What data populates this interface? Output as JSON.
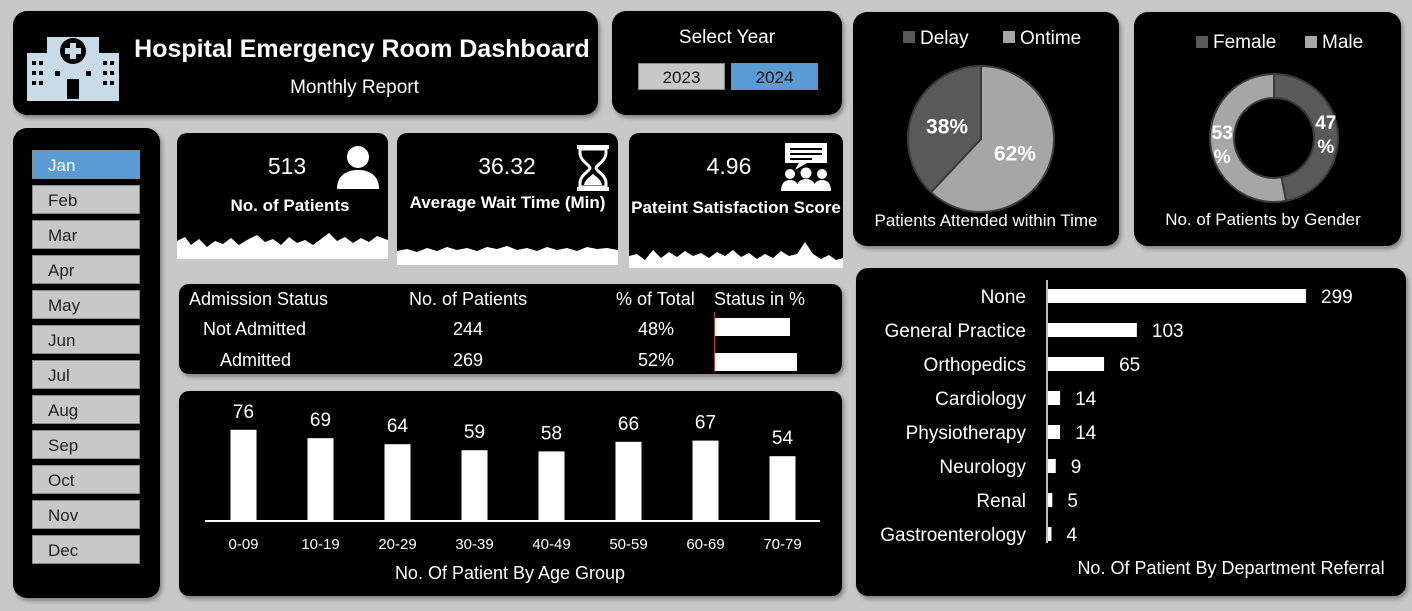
{
  "header": {
    "title": "Hospital Emergency Room Dashboard",
    "subtitle": "Monthly Report",
    "logo_icon": "hospital-icon"
  },
  "year_selector": {
    "title": "Select Year",
    "years": [
      "2023",
      "2024"
    ],
    "selected": "2024"
  },
  "months": [
    "Jan",
    "Feb",
    "Mar",
    "Apr",
    "May",
    "Jun",
    "Jul",
    "Aug",
    "Sep",
    "Oct",
    "Nov",
    "Dec"
  ],
  "selected_month": "Jan",
  "kpis": {
    "patients": {
      "value": "513",
      "label": "No. of Patients",
      "icon": "person-icon"
    },
    "wait_time": {
      "value": "36.32",
      "label": "Average Wait Time (Min)",
      "icon": "hourglass-icon"
    },
    "satisfaction": {
      "value": "4.96",
      "label": "Pateint Satisfaction Score",
      "icon": "group-chat-icon"
    }
  },
  "admission": {
    "headers": {
      "status": "Admission Status",
      "count": "No. of Patients",
      "pct": "% of Total",
      "bar": "Status in %"
    },
    "rows": [
      {
        "status": "Not Admitted",
        "count": "244",
        "pct": "48%",
        "fraction": 0.48
      },
      {
        "status": "Admitted",
        "count": "269",
        "pct": "52%",
        "fraction": 0.52
      }
    ]
  },
  "chart_data": [
    {
      "type": "bar",
      "title": "No. Of Patient By Age Group",
      "categories": [
        "0-09",
        "10-19",
        "20-29",
        "30-39",
        "40-49",
        "50-59",
        "60-69",
        "70-79"
      ],
      "values": [
        76,
        69,
        64,
        59,
        58,
        66,
        67,
        54
      ],
      "ylim": [
        0,
        100
      ],
      "grid": false,
      "color": "#ffffff"
    },
    {
      "type": "pie",
      "title": "Patients Attended within Time",
      "categories": [
        "Delay",
        "Ontime"
      ],
      "values": [
        38,
        62
      ],
      "labels": [
        "38%",
        "62%"
      ],
      "colors": [
        "#595959",
        "#a6a6a6"
      ],
      "legend": "top"
    },
    {
      "type": "pie",
      "title": "No. of Patients by Gender",
      "categories": [
        "Female",
        "Male"
      ],
      "values": [
        47,
        53
      ],
      "labels": [
        "47 %",
        "53 %"
      ],
      "colors": [
        "#595959",
        "#a6a6a6"
      ],
      "legend": "top"
    },
    {
      "type": "bar",
      "orientation": "horizontal",
      "title": "No. Of Patient By Department Referral",
      "categories": [
        "None",
        "General Practice",
        "Orthopedics",
        "Cardiology",
        "Physiotherapy",
        "Neurology",
        "Renal",
        "Gastroenterology"
      ],
      "values": [
        299,
        103,
        65,
        14,
        14,
        9,
        5,
        4
      ],
      "xlim": [
        0,
        299
      ],
      "grid": false,
      "color": "#ffffff"
    }
  ]
}
